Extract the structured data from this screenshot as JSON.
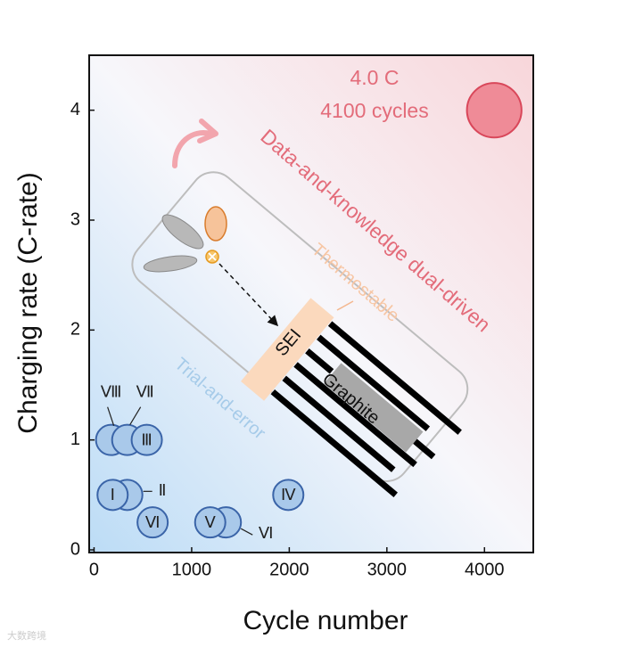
{
  "chart_data": {
    "type": "scatter",
    "x_label": "Cycle number",
    "y_label": "Charging rate (C-rate)",
    "xlim": [
      -50,
      4500
    ],
    "xticks": [
      0,
      1000,
      2000,
      3000,
      4000
    ],
    "ylim": [
      0,
      4.5
    ],
    "yticks": [
      0,
      1,
      2,
      3,
      4
    ],
    "x": [
      175,
      340,
      540,
      340,
      190,
      600,
      1350,
      1190,
      1990,
      4100
    ],
    "values": [
      1,
      1,
      1,
      0.5,
      0.5,
      0.25,
      0.25,
      0.25,
      0.5,
      4
    ],
    "sizes": [
      1,
      1,
      1,
      1,
      1,
      1,
      1,
      1,
      1,
      1.8
    ],
    "labels": [
      "Ⅷ",
      "Ⅶ",
      "Ⅲ",
      "Ⅱ",
      "Ⅰ",
      "Ⅵ",
      "Ⅵ",
      "Ⅴ",
      "Ⅳ",
      null
    ],
    "colors": [
      "#a9c9ea",
      "#a9c9ea",
      "#a9c9ea",
      "#a9c9ea",
      "#a9c9ea",
      "#a9c9ea",
      "#a9c9ea",
      "#a9c9ea",
      "#a9c9ea",
      "#ef8b97"
    ],
    "annotations": [
      "4.0 C",
      "4100 cycles",
      "Data-and-knowledge dual-driven",
      "Trial-and-error",
      "Thermostable",
      "SEI",
      "Graphite"
    ],
    "watermark": "大数跨境"
  }
}
